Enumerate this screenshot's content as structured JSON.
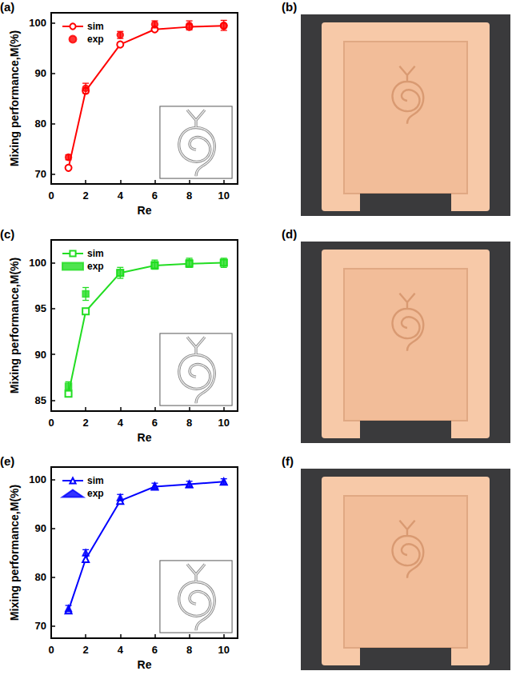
{
  "chart_data": [
    {
      "type": "line",
      "title": "(a)",
      "x_label": "Re",
      "y_label": "Mixing performance,M(%)",
      "x": [
        1,
        2,
        4,
        6,
        8,
        10
      ],
      "xlim": [
        0,
        10.8
      ],
      "xticks": [
        0,
        2,
        4,
        6,
        8,
        10
      ],
      "ylim": [
        68,
        102
      ],
      "yticks": [
        70,
        80,
        90,
        100
      ],
      "grid": false,
      "legend": "upper left",
      "series": [
        {
          "name": "sim",
          "type": "line",
          "color": "#ff0000",
          "marker": "open_circle",
          "values": [
            71.2,
            86.5,
            95.7,
            98.7,
            99.2,
            99.4
          ]
        },
        {
          "name": "exp",
          "type": "scatter",
          "color": "#ff0000",
          "marker": "circle",
          "values": [
            73.3,
            87.0,
            97.6,
            99.7,
            99.5,
            99.5
          ],
          "errors": [
            0.5,
            1.0,
            0.7,
            0.7,
            0.9,
            1.0
          ]
        }
      ]
    },
    {
      "type": "line",
      "title": "(c)",
      "x_label": "Re",
      "y_label": "Mixing performance,M(%)",
      "x": [
        1,
        2,
        4,
        6,
        8,
        10
      ],
      "xlim": [
        0,
        10.8
      ],
      "xticks": [
        0,
        2,
        4,
        6,
        8,
        10
      ],
      "ylim": [
        83.8,
        102.5
      ],
      "yticks": [
        85,
        90,
        95,
        100
      ],
      "grid": false,
      "legend": "upper left",
      "series": [
        {
          "name": "sim",
          "type": "line",
          "color": "#22dd22",
          "marker": "open_square",
          "values": [
            85.7,
            94.7,
            98.9,
            99.7,
            99.9,
            100.0
          ]
        },
        {
          "name": "exp",
          "type": "scatter",
          "color": "#22dd22",
          "marker": "square",
          "values": [
            86.5,
            96.6,
            98.9,
            99.8,
            100.0,
            100.0
          ],
          "errors": [
            0.5,
            0.7,
            0.6,
            0.5,
            0.5,
            0.5
          ]
        }
      ]
    },
    {
      "type": "line",
      "title": "(e)",
      "x_label": "Re",
      "y_label": "Mixing performance,M(%)",
      "x": [
        1,
        2,
        4,
        6,
        8,
        10
      ],
      "xlim": [
        0,
        10.8
      ],
      "xticks": [
        0,
        2,
        4,
        6,
        8,
        10
      ],
      "ylim": [
        67.5,
        102.5
      ],
      "yticks": [
        70,
        80,
        90,
        100
      ],
      "grid": false,
      "legend": "upper left",
      "series": [
        {
          "name": "sim",
          "type": "line",
          "color": "#0000ff",
          "marker": "open_triangle",
          "values": [
            73.2,
            83.7,
            95.6,
            98.5,
            99.0,
            99.5
          ]
        },
        {
          "name": "exp",
          "type": "scatter",
          "color": "#0000ff",
          "marker": "triangle",
          "values": [
            73.6,
            85.0,
            96.3,
            98.7,
            99.0,
            99.5
          ],
          "errors": [
            0.6,
            0.6,
            0.6,
            0.5,
            0.6,
            0.6
          ]
        }
      ]
    }
  ],
  "photo_panels": [
    "(b)",
    "(d)",
    "(f)"
  ]
}
